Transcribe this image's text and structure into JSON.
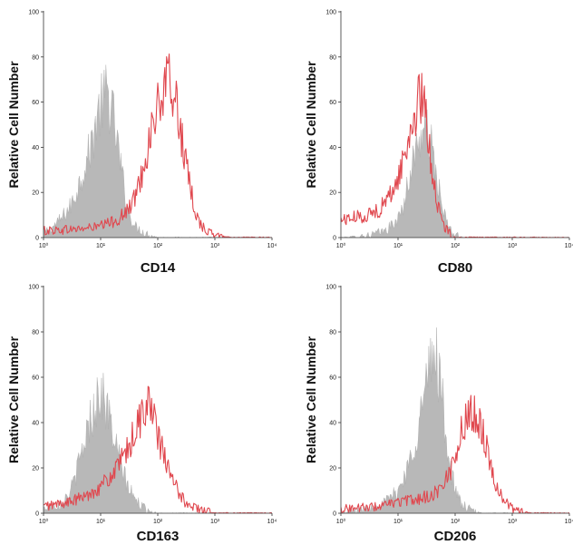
{
  "chart_data": [
    {
      "type": "histogram",
      "xlabel": "CD14",
      "ylabel": "Relative Cell Number",
      "xscale": "log",
      "xlim": [
        1,
        10000
      ],
      "ylim": [
        0,
        100
      ],
      "yticks": [
        0,
        20,
        40,
        60,
        80,
        100
      ],
      "xticks": [
        "10⁰",
        "10¹",
        "10²",
        "10³",
        "10⁴"
      ],
      "series": [
        {
          "role": "isotype control",
          "style": "filled",
          "color": "#b8b8b8",
          "peak_x": 13,
          "peak_y": 64,
          "points": [
            [
              1,
              2
            ],
            [
              1.5,
              5
            ],
            [
              2,
              8
            ],
            [
              3,
              14
            ],
            [
              4,
              22
            ],
            [
              5,
              30
            ],
            [
              6,
              36
            ],
            [
              7,
              42
            ],
            [
              8,
              50
            ],
            [
              10,
              58
            ],
            [
              13,
              64
            ],
            [
              16,
              56
            ],
            [
              20,
              40
            ],
            [
              25,
              24
            ],
            [
              30,
              12
            ],
            [
              40,
              5
            ],
            [
              60,
              2
            ],
            [
              100,
              0
            ]
          ]
        },
        {
          "role": "antibody",
          "style": "line",
          "color": "#e0484f",
          "peak_x": 160,
          "peak_y": 70,
          "points": [
            [
              1,
              3
            ],
            [
              5,
              4
            ],
            [
              10,
              5
            ],
            [
              20,
              8
            ],
            [
              30,
              12
            ],
            [
              40,
              18
            ],
            [
              50,
              26
            ],
            [
              60,
              34
            ],
            [
              80,
              50
            ],
            [
              110,
              60
            ],
            [
              160,
              70
            ],
            [
              200,
              62
            ],
            [
              250,
              48
            ],
            [
              300,
              34
            ],
            [
              400,
              18
            ],
            [
              500,
              8
            ],
            [
              700,
              3
            ],
            [
              1000,
              1
            ],
            [
              2000,
              0
            ]
          ]
        }
      ]
    },
    {
      "type": "histogram",
      "xlabel": "CD80",
      "ylabel": "Relative Cell Number",
      "xscale": "log",
      "xlim": [
        1,
        10000
      ],
      "ylim": [
        0,
        100
      ],
      "yticks": [
        0,
        20,
        40,
        60,
        80,
        100
      ],
      "xticks": [
        "10⁰",
        "10¹",
        "10²",
        "10³",
        "10⁴"
      ],
      "series": [
        {
          "role": "isotype control",
          "style": "filled",
          "color": "#b8b8b8",
          "peak_x": 30,
          "peak_y": 48,
          "points": [
            [
              1,
              0
            ],
            [
              3,
              1
            ],
            [
              6,
              3
            ],
            [
              10,
              8
            ],
            [
              13,
              16
            ],
            [
              16,
              28
            ],
            [
              20,
              38
            ],
            [
              25,
              46
            ],
            [
              30,
              48
            ],
            [
              35,
              45
            ],
            [
              40,
              38
            ],
            [
              50,
              24
            ],
            [
              60,
              12
            ],
            [
              80,
              4
            ],
            [
              100,
              1
            ],
            [
              150,
              0
            ]
          ]
        },
        {
          "role": "antibody",
          "style": "line",
          "color": "#e0484f",
          "peak_x": 25,
          "peak_y": 62,
          "points": [
            [
              1,
              8
            ],
            [
              2,
              9
            ],
            [
              3,
              10
            ],
            [
              5,
              13
            ],
            [
              7,
              18
            ],
            [
              10,
              26
            ],
            [
              13,
              36
            ],
            [
              16,
              46
            ],
            [
              20,
              56
            ],
            [
              25,
              62
            ],
            [
              30,
              55
            ],
            [
              35,
              42
            ],
            [
              40,
              28
            ],
            [
              50,
              14
            ],
            [
              60,
              6
            ],
            [
              80,
              2
            ],
            [
              100,
              0
            ]
          ]
        }
      ]
    },
    {
      "type": "histogram",
      "xlabel": "CD163",
      "ylabel": "Relative Cell Number",
      "xscale": "log",
      "xlim": [
        1,
        10000
      ],
      "ylim": [
        0,
        100
      ],
      "yticks": [
        0,
        20,
        40,
        60,
        80,
        100
      ],
      "xticks": [
        "10⁰",
        "10¹",
        "10²",
        "10³",
        "10⁴"
      ],
      "series": [
        {
          "role": "isotype control",
          "style": "filled",
          "color": "#b8b8b8",
          "peak_x": 10,
          "peak_y": 54,
          "points": [
            [
              1,
              2
            ],
            [
              2,
              4
            ],
            [
              3,
              10
            ],
            [
              4,
              20
            ],
            [
              5,
              30
            ],
            [
              6,
              38
            ],
            [
              8,
              48
            ],
            [
              10,
              54
            ],
            [
              13,
              46
            ],
            [
              16,
              36
            ],
            [
              20,
              26
            ],
            [
              25,
              18
            ],
            [
              30,
              12
            ],
            [
              40,
              6
            ],
            [
              60,
              2
            ],
            [
              100,
              0
            ]
          ]
        },
        {
          "role": "antibody",
          "style": "line",
          "color": "#e0484f",
          "peak_x": 65,
          "peak_y": 50,
          "points": [
            [
              1,
              3
            ],
            [
              3,
              5
            ],
            [
              6,
              8
            ],
            [
              10,
              12
            ],
            [
              15,
              16
            ],
            [
              20,
              20
            ],
            [
              30,
              28
            ],
            [
              40,
              36
            ],
            [
              50,
              42
            ],
            [
              65,
              50
            ],
            [
              80,
              44
            ],
            [
              100,
              34
            ],
            [
              150,
              20
            ],
            [
              200,
              12
            ],
            [
              300,
              5
            ],
            [
              500,
              2
            ],
            [
              1000,
              0
            ]
          ]
        }
      ]
    },
    {
      "type": "histogram",
      "xlabel": "CD206",
      "ylabel": "Relative Cell Number",
      "xscale": "log",
      "xlim": [
        1,
        10000
      ],
      "ylim": [
        0,
        100
      ],
      "yticks": [
        0,
        20,
        40,
        60,
        80,
        100
      ],
      "xticks": [
        "10⁰",
        "10¹",
        "10²",
        "10³",
        "10⁴"
      ],
      "series": [
        {
          "role": "isotype control",
          "style": "filled",
          "color": "#b8b8b8",
          "peak_x": 45,
          "peak_y": 72,
          "points": [
            [
              1,
              0
            ],
            [
              3,
              2
            ],
            [
              6,
              5
            ],
            [
              10,
              10
            ],
            [
              15,
              20
            ],
            [
              20,
              32
            ],
            [
              25,
              44
            ],
            [
              30,
              54
            ],
            [
              38,
              66
            ],
            [
              45,
              72
            ],
            [
              55,
              60
            ],
            [
              65,
              40
            ],
            [
              80,
              22
            ],
            [
              100,
              10
            ],
            [
              130,
              4
            ],
            [
              200,
              1
            ],
            [
              300,
              0
            ]
          ]
        },
        {
          "role": "antibody",
          "style": "line",
          "color": "#e0484f",
          "peak_x": 200,
          "peak_y": 46,
          "points": [
            [
              1,
              2
            ],
            [
              5,
              3
            ],
            [
              10,
              5
            ],
            [
              20,
              6
            ],
            [
              40,
              8
            ],
            [
              60,
              12
            ],
            [
              80,
              18
            ],
            [
              100,
              26
            ],
            [
              130,
              36
            ],
            [
              170,
              43
            ],
            [
              200,
              46
            ],
            [
              250,
              42
            ],
            [
              300,
              36
            ],
            [
              400,
              24
            ],
            [
              500,
              14
            ],
            [
              700,
              6
            ],
            [
              1000,
              2
            ],
            [
              2000,
              0
            ]
          ]
        }
      ]
    }
  ]
}
